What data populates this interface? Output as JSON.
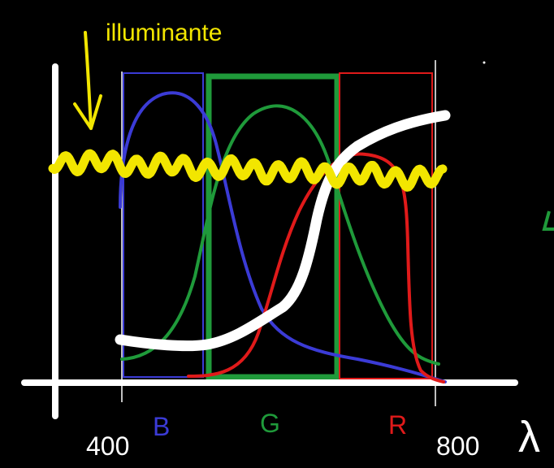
{
  "labels": {
    "illuminant": "illuminante",
    "band_b": "B",
    "band_g": "G",
    "band_r": "R",
    "tick_400": "400",
    "tick_800": "800",
    "axis_lambda": "λ"
  },
  "colors": {
    "background": "#000000",
    "axes": "#ffffff",
    "illuminant": "#f2e600",
    "blue": "#3b3bd6",
    "green": "#1f9a3a",
    "red": "#e01a1a",
    "white_curve": "#ffffff"
  }
}
